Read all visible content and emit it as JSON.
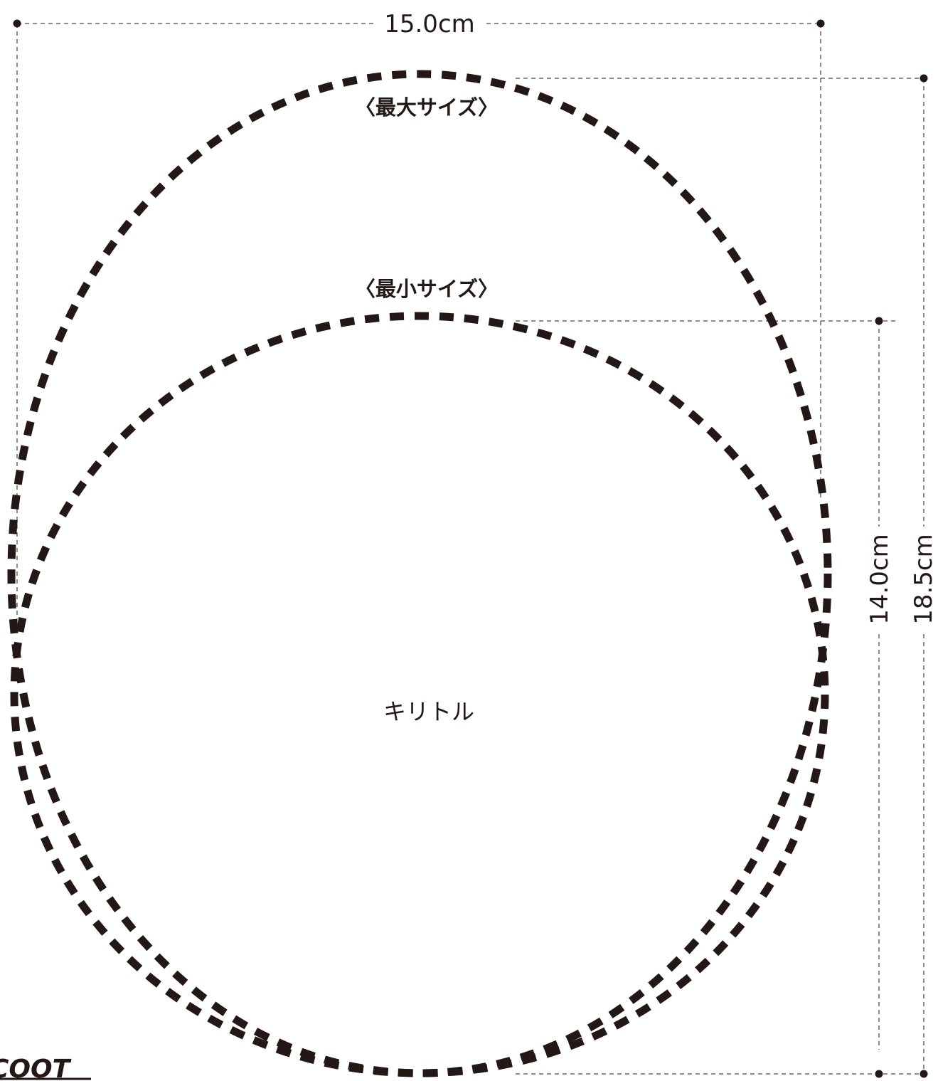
{
  "dimensions": {
    "width_label": "15.0cm",
    "min_height_label": "14.0cm",
    "max_height_label": "18.5cm"
  },
  "sizes": {
    "max_label": "〈最大サイズ〉",
    "min_label": "〈最小サイズ〉"
  },
  "cut_area_label": "キリトル",
  "logo_text": "COOT",
  "colors": {
    "ink": "#231815",
    "background": "#ffffff"
  }
}
